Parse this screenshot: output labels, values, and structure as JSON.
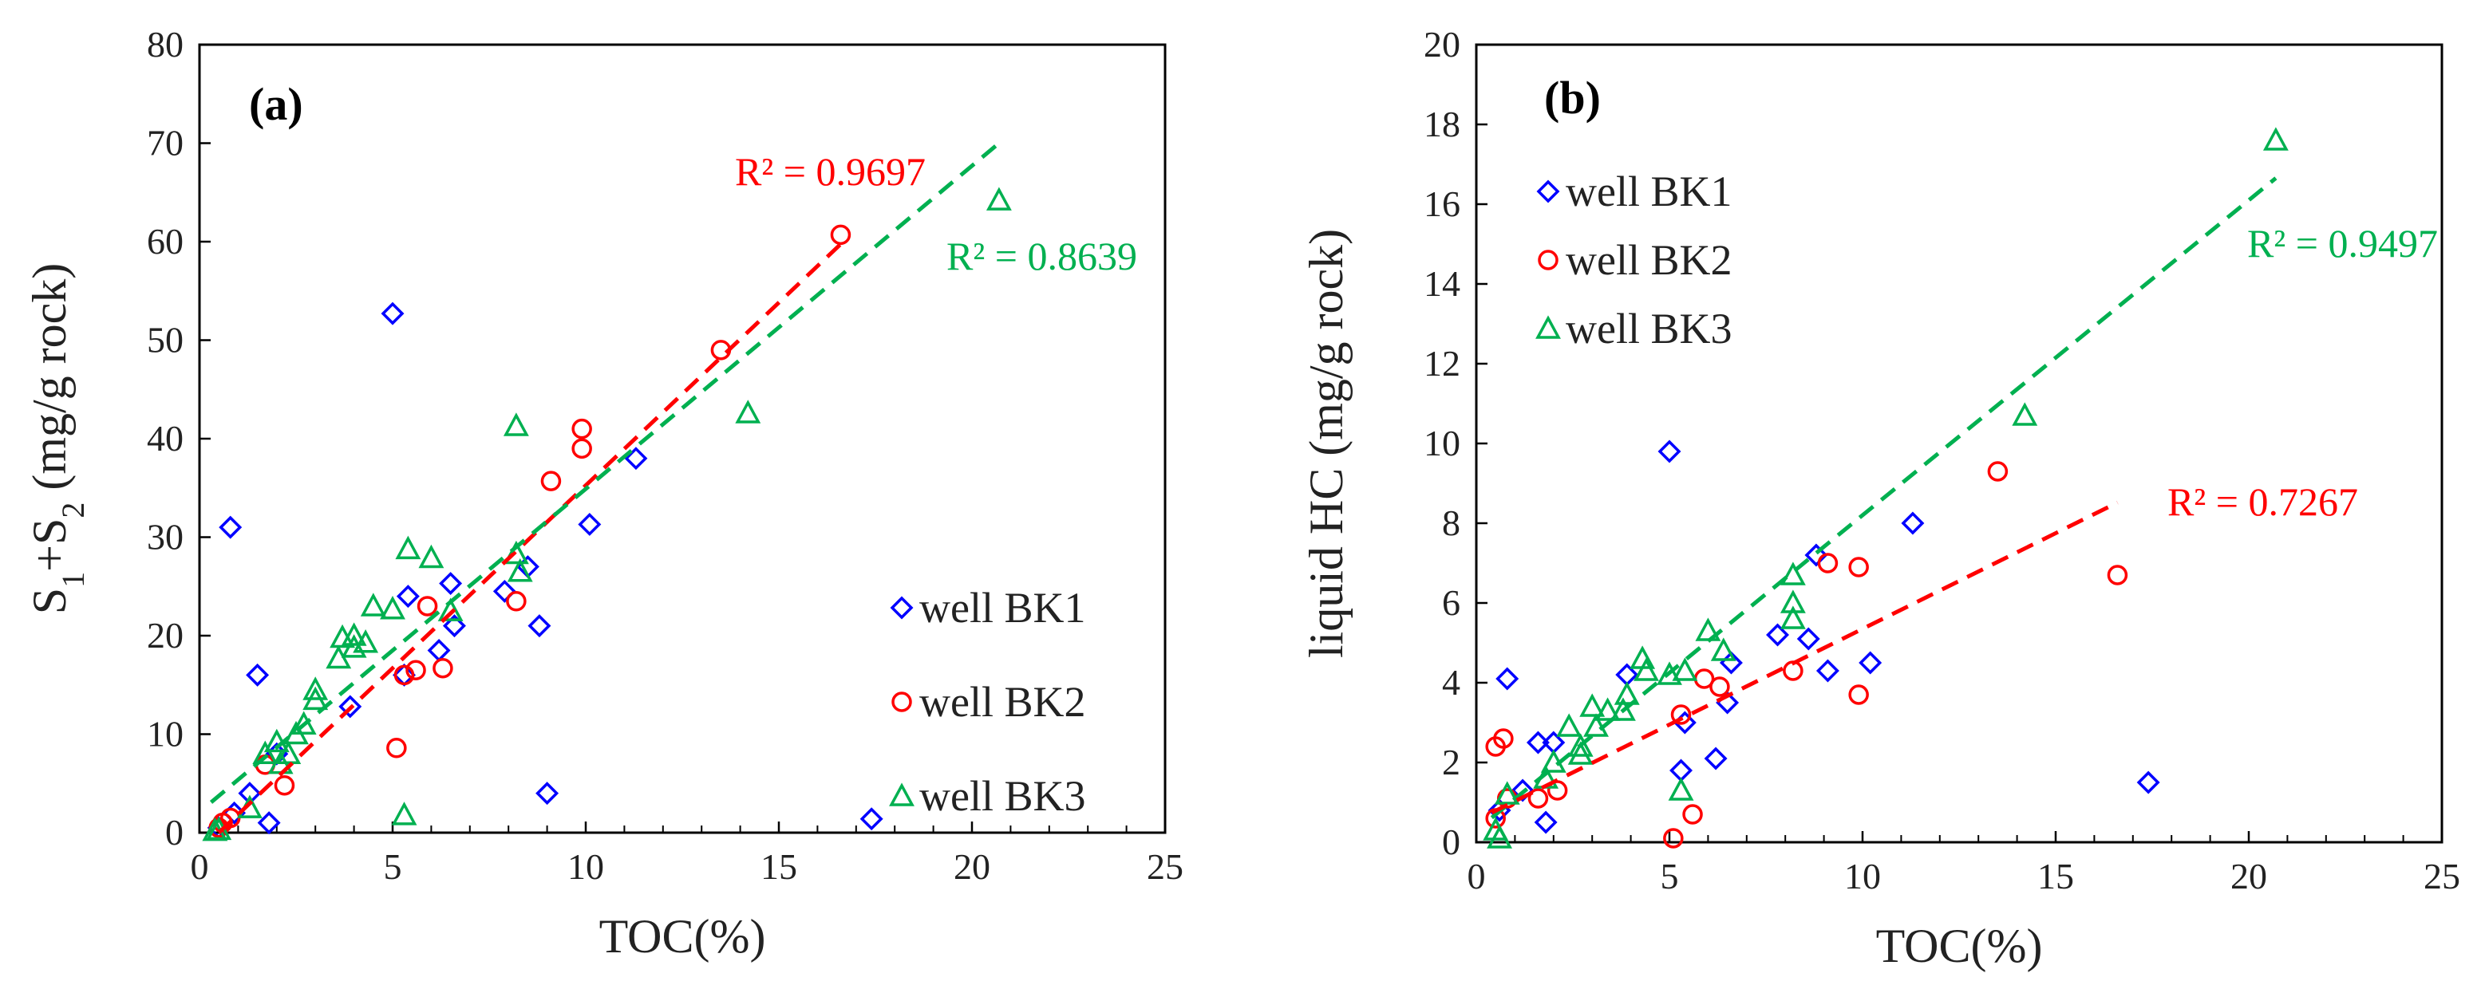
{
  "chart_data": [
    {
      "type": "scatter",
      "panel_label": "(a)",
      "xlabel": "TOC(%)",
      "ylabel_parts": [
        "S",
        "1",
        "+S",
        "2",
        " (mg/g rock)"
      ],
      "xlim": [
        0,
        25
      ],
      "ylim": [
        0,
        80
      ],
      "xticks": [
        0,
        5,
        10,
        15,
        20,
        25
      ],
      "yticks": [
        0,
        10,
        20,
        30,
        40,
        50,
        60,
        70,
        80
      ],
      "legend_position": "bottom-right",
      "series": [
        {
          "name": "well BK1",
          "marker": "diamond",
          "color": "#0000ff",
          "points": [
            [
              0.8,
              31
            ],
            [
              1.5,
              16
            ],
            [
              1.8,
              1
            ],
            [
              5,
              52.7
            ],
            [
              5.4,
              24
            ],
            [
              6.5,
              25.3
            ],
            [
              6.6,
              21
            ],
            [
              6.2,
              18.5
            ],
            [
              3.9,
              12.8
            ],
            [
              7.9,
              24.5
            ],
            [
              8.5,
              27
            ],
            [
              8.8,
              21
            ],
            [
              9,
              4
            ],
            [
              10.1,
              31.3
            ],
            [
              11.3,
              38
            ],
            [
              17.4,
              1.4
            ],
            [
              2,
              8
            ],
            [
              1.3,
              4
            ],
            [
              0.9,
              2
            ],
            [
              0.5,
              0.5
            ],
            [
              5.3,
              16
            ]
          ]
        },
        {
          "name": "well BK2",
          "marker": "circle",
          "color": "#ff0000",
          "points": [
            [
              16.6,
              60.7
            ],
            [
              13.5,
              49
            ],
            [
              9.9,
              41
            ],
            [
              9.9,
              39
            ],
            [
              9.1,
              35.7
            ],
            [
              8.2,
              23.5
            ],
            [
              5.9,
              23
            ],
            [
              6.3,
              16.7
            ],
            [
              5.6,
              16.5
            ],
            [
              5.3,
              16
            ],
            [
              5.1,
              8.6
            ],
            [
              2.2,
              4.8
            ],
            [
              1.7,
              6.9
            ],
            [
              0.8,
              1.5
            ],
            [
              0.6,
              1
            ],
            [
              0.5,
              0.5
            ]
          ]
        },
        {
          "name": "well BK3",
          "marker": "triangle",
          "color": "#00b050",
          "points": [
            [
              20.7,
              64.2
            ],
            [
              14.2,
              42.6
            ],
            [
              8.2,
              41.3
            ],
            [
              8.2,
              28.3
            ],
            [
              8.3,
              26.5
            ],
            [
              5.4,
              28.8
            ],
            [
              6,
              27.9
            ],
            [
              6.5,
              22.5
            ],
            [
              4.5,
              23
            ],
            [
              5,
              22.7
            ],
            [
              3.7,
              19.8
            ],
            [
              4,
              20
            ],
            [
              4,
              18.8
            ],
            [
              4.3,
              19.3
            ],
            [
              3.6,
              17.7
            ],
            [
              3,
              14.5
            ],
            [
              3,
              13.5
            ],
            [
              2.7,
              11
            ],
            [
              2.5,
              10
            ],
            [
              2,
              9.2
            ],
            [
              2.3,
              8
            ],
            [
              1.7,
              8
            ],
            [
              2.1,
              7
            ],
            [
              1.3,
              2.5
            ],
            [
              5.3,
              1.8
            ],
            [
              0.5,
              0.3
            ],
            [
              0.4,
              0.2
            ]
          ]
        }
      ],
      "trendlines": [
        {
          "series": "well BK2",
          "color": "#ff0000",
          "x": [
            0.5,
            16.6
          ],
          "slope": 3.75,
          "intercept": -2.5,
          "r2_label": "R² = 0.9697"
        },
        {
          "series": "well BK3",
          "color": "#00b050",
          "x": [
            0.3,
            20.7
          ],
          "slope": 3.28,
          "intercept": 2.1,
          "r2_label": "R² = 0.8639"
        }
      ]
    },
    {
      "type": "scatter",
      "panel_label": "(b)",
      "xlabel": "TOC(%)",
      "ylabel_parts": [
        "liquid HC (mg/g rock)"
      ],
      "xlim": [
        0,
        25
      ],
      "ylim": [
        0,
        20
      ],
      "xticks": [
        0,
        5,
        10,
        15,
        20,
        25
      ],
      "yticks": [
        0,
        2,
        4,
        6,
        8,
        10,
        12,
        14,
        16,
        18,
        20
      ],
      "legend_position": "top-left",
      "series": [
        {
          "name": "well BK1",
          "marker": "diamond",
          "color": "#0000ff",
          "points": [
            [
              5,
              9.8
            ],
            [
              0.8,
              4.1
            ],
            [
              1.6,
              2.5
            ],
            [
              2,
              2.5
            ],
            [
              1.8,
              0.5
            ],
            [
              3.9,
              4.2
            ],
            [
              6.6,
              4.5
            ],
            [
              6.5,
              3.5
            ],
            [
              5.4,
              3
            ],
            [
              5.3,
              1.8
            ],
            [
              6.2,
              2.1
            ],
            [
              7.8,
              5.2
            ],
            [
              8.6,
              5.1
            ],
            [
              8.8,
              7.2
            ],
            [
              9.1,
              4.3
            ],
            [
              10.2,
              4.5
            ],
            [
              11.3,
              8
            ],
            [
              17.4,
              1.5
            ],
            [
              1.2,
              1.3
            ],
            [
              0.6,
              0.8
            ]
          ]
        },
        {
          "name": "well BK2",
          "marker": "circle",
          "color": "#ff0000",
          "points": [
            [
              13.5,
              9.3
            ],
            [
              16.6,
              6.7
            ],
            [
              9.1,
              7
            ],
            [
              9.9,
              6.9
            ],
            [
              9.9,
              3.7
            ],
            [
              8.2,
              4.3
            ],
            [
              5.9,
              4.1
            ],
            [
              6.3,
              3.9
            ],
            [
              5.3,
              3.2
            ],
            [
              5.6,
              0.7
            ],
            [
              5.1,
              0.1
            ],
            [
              0.7,
              2.6
            ],
            [
              0.5,
              2.4
            ],
            [
              2.1,
              1.3
            ],
            [
              1.6,
              1.1
            ],
            [
              0.8,
              1.1
            ],
            [
              0.5,
              0.6
            ]
          ]
        },
        {
          "name": "well BK3",
          "marker": "triangle",
          "color": "#00b050",
          "points": [
            [
              20.7,
              17.6
            ],
            [
              14.2,
              10.7
            ],
            [
              8.2,
              6.7
            ],
            [
              8.2,
              6
            ],
            [
              8.2,
              5.6
            ],
            [
              6,
              5.3
            ],
            [
              6.4,
              4.8
            ],
            [
              4.3,
              4.6
            ],
            [
              4.4,
              4.3
            ],
            [
              5,
              4.2
            ],
            [
              5.4,
              4.3
            ],
            [
              3,
              3.4
            ],
            [
              3.4,
              3.3
            ],
            [
              3.9,
              3.7
            ],
            [
              3.8,
              3.3
            ],
            [
              3.1,
              2.9
            ],
            [
              2.4,
              2.9
            ],
            [
              2.7,
              2.4
            ],
            [
              2.7,
              2.2
            ],
            [
              2,
              2
            ],
            [
              1.8,
              1.6
            ],
            [
              5.3,
              1.3
            ],
            [
              0.8,
              1.2
            ],
            [
              0.5,
              0.3
            ],
            [
              0.6,
              0.1
            ]
          ]
        }
      ],
      "trendlines": [
        {
          "series": "well BK3",
          "color": "#00b050",
          "x": [
            0.4,
            20.7
          ],
          "slope": 0.79,
          "intercept": 0.3,
          "r2_label": "R² = 0.9497"
        },
        {
          "series": "well BK2",
          "color": "#ff0000",
          "x": [
            0.4,
            16.6
          ],
          "slope": 0.48,
          "intercept": 0.55,
          "r2_label": "R² = 0.7267"
        }
      ]
    }
  ]
}
